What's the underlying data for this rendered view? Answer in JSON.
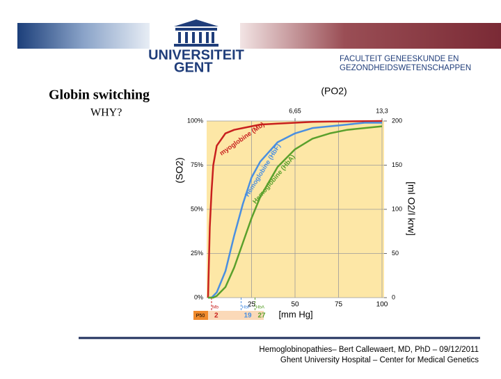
{
  "header": {
    "university": [
      "UNIVERSITEIT",
      "GENT"
    ],
    "faculty": [
      "FACULTEIT GENEESKUNDE EN",
      "GEZONDHEIDSWETENSCHAPPEN"
    ]
  },
  "slide": {
    "title": "Globin switching",
    "subtitle": "WHY?"
  },
  "chart_data": {
    "type": "line",
    "top_label": "(PO2)",
    "y_label": "(SO2)",
    "y2_label": "[ml O2/l krw]",
    "x_label": "[mm Hg]",
    "x": [
      0,
      1,
      2,
      3,
      5,
      10,
      15,
      20,
      25,
      30,
      40,
      50,
      60,
      70,
      80,
      90,
      100
    ],
    "series": [
      {
        "name": "myoglobine (Mb)",
        "color": "#c8201e",
        "values": [
          0,
          40,
          60,
          75,
          86,
          93,
          95,
          96,
          97,
          98,
          98.5,
          99,
          99.5,
          99.7,
          99.8,
          99.9,
          100
        ]
      },
      {
        "name": "Hemoglobine (HbF)",
        "color": "#4a8fe0",
        "values": [
          0,
          0,
          0,
          1,
          3,
          15,
          35,
          53,
          68,
          77,
          88,
          93,
          96,
          97,
          98,
          99,
          99
        ]
      },
      {
        "name": "Hemoglobine (HbA)",
        "color": "#5aa02c",
        "values": [
          0,
          0,
          0,
          0,
          1,
          6,
          17,
          31,
          45,
          57,
          74,
          84,
          90,
          93,
          95,
          96,
          97
        ]
      }
    ],
    "xlim": [
      0,
      100
    ],
    "xticks": [
      25,
      50,
      75,
      100
    ],
    "top_ticks": [
      {
        "value": 50,
        "label": "6,65"
      },
      {
        "value": 100,
        "label": "13,3"
      }
    ],
    "ylim": [
      0,
      100
    ],
    "yticks": [
      {
        "value": 0,
        "label": "0%"
      },
      {
        "value": 25,
        "label": "25%"
      },
      {
        "value": 50,
        "label": "50%"
      },
      {
        "value": 75,
        "label": "75%"
      },
      {
        "value": 100,
        "label": "100%"
      }
    ],
    "y2lim": [
      0,
      200
    ],
    "y2ticks": [
      0,
      50,
      100,
      150,
      200
    ],
    "grid": true,
    "p50_label": "P50",
    "p50": [
      {
        "name": "Mb",
        "value": 2,
        "color": "#c8201e"
      },
      {
        "name": "HbF",
        "value": 19,
        "color": "#4a8fe0"
      },
      {
        "name": "HbA",
        "value": 27,
        "color": "#5aa02c"
      }
    ]
  },
  "footer": [
    "Hemoglobinopathies– Bert Callewaert, MD, PhD – 09/12/2011",
    "Ghent University Hospital – Center for Medical Genetics"
  ]
}
